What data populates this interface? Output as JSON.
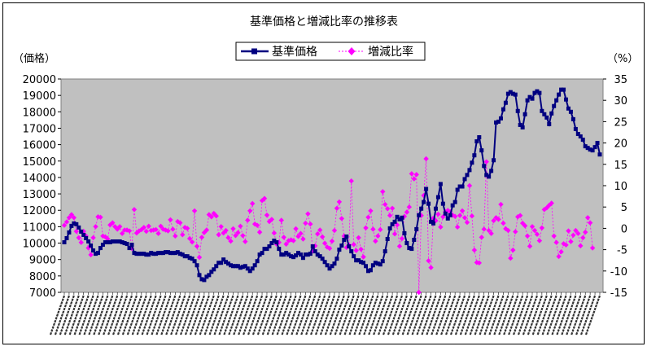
{
  "chart_data": {
    "type": "line",
    "title": "基準価格と増減比率の推移表",
    "y_left_label": "（価格）",
    "y_right_label": "（%）",
    "ylim_left": [
      7000,
      20000
    ],
    "ylim_right": [
      -15,
      35
    ],
    "yticks_left": [
      "7000",
      "8000",
      "9000",
      "10000",
      "11000",
      "12000",
      "13000",
      "14000",
      "15000",
      "16000",
      "17000",
      "18000",
      "19000",
      "20000"
    ],
    "yticks_right": [
      "-15",
      "-10",
      "-5",
      "0",
      "5",
      "10",
      "15",
      "20",
      "25",
      "30",
      "35"
    ],
    "legend_position": "top",
    "grid": false,
    "plot_background": "#c0c0c0",
    "series": [
      {
        "name": "基準価格",
        "axis": "left",
        "color": "#000080",
        "marker": "square",
        "values": [
          10050,
          10300,
          10650,
          11050,
          11200,
          11150,
          10950,
          10700,
          10500,
          10300,
          10100,
          9850,
          9550,
          9350,
          9400,
          9700,
          9900,
          10050,
          10050,
          10050,
          10100,
          10100,
          10100,
          10100,
          10050,
          10000,
          9950,
          9700,
          9900,
          9400,
          9350,
          9350,
          9350,
          9350,
          9300,
          9300,
          9400,
          9350,
          9350,
          9400,
          9400,
          9400,
          9450,
          9450,
          9400,
          9400,
          9400,
          9450,
          9350,
          9300,
          9200,
          9200,
          9100,
          9050,
          8900,
          8650,
          8050,
          7800,
          7750,
          7950,
          8050,
          8250,
          8400,
          8600,
          8800,
          8800,
          9000,
          8850,
          8750,
          8650,
          8600,
          8600,
          8600,
          8500,
          8550,
          8600,
          8450,
          8300,
          8450,
          8650,
          8900,
          9300,
          9400,
          9650,
          9650,
          9800,
          10000,
          10150,
          10050,
          9650,
          9300,
          9300,
          9400,
          9300,
          9200,
          9150,
          9250,
          9400,
          9300,
          9100,
          9300,
          9300,
          9350,
          9800,
          9500,
          9300,
          9200,
          9050,
          8850,
          8650,
          8450,
          8600,
          8750,
          9050,
          9600,
          9850,
          10200,
          10400,
          9800,
          9500,
          9200,
          8950,
          8950,
          8850,
          8800,
          8600,
          8300,
          8350,
          8650,
          8800,
          8750,
          8700,
          8900,
          9500,
          10250,
          10900,
          11150,
          11300,
          11600,
          11450,
          11550,
          10600,
          10000,
          9700,
          9650,
          10200,
          10850,
          11700,
          12100,
          12500,
          13300,
          12400,
          11300,
          11200,
          12100,
          12800,
          13600,
          12400,
          11800,
          11500,
          11700,
          12300,
          12500,
          13250,
          13450,
          13450,
          13900,
          14150,
          14450,
          14900,
          15350,
          16200,
          16450,
          15650,
          14700,
          14150,
          14050,
          14400,
          15050,
          17350,
          17400,
          17600,
          18150,
          18550,
          19100,
          19200,
          19100,
          19050,
          18050,
          17200,
          17050,
          17850,
          18700,
          18900,
          18800,
          19150,
          19250,
          19150,
          18050,
          17850,
          17650,
          17250,
          17900,
          18350,
          18700,
          19050,
          19350,
          19350,
          18750,
          18200,
          18000,
          17550,
          16950,
          16650,
          16500,
          16300,
          15900,
          15800,
          15700,
          15650,
          15850,
          16100,
          15400
        ]
      },
      {
        "name": "増減比率",
        "axis": "right",
        "color": "#ff00ff",
        "marker": "diamond",
        "values": [
          0.7,
          1.5,
          2.5,
          3.2,
          2.5,
          -0.7,
          -2.2,
          -3.3,
          -0.7,
          -1.8,
          -4.6,
          -6.2,
          -2.2,
          0.4,
          2.7,
          2.6,
          -1.8,
          -2.0,
          -2.5,
          0.8,
          1.3,
          0.4,
          -0.2,
          0.4,
          -1.2,
          -0.4,
          -0.4,
          -0.6,
          -4.7,
          4.4,
          -1.1,
          -0.6,
          -0.3,
          0.2,
          -0.7,
          0.5,
          -0.5,
          -0.4,
          -0.3,
          -1.2,
          0.5,
          -0.2,
          -0.4,
          -0.6,
          2.0,
          -0.2,
          -1.8,
          1.6,
          1.3,
          -1.5,
          0.2,
          0.0,
          -2.4,
          -3.2,
          4.1,
          -4.2,
          -6.8,
          -2.1,
          -1.0,
          -0.4,
          3.2,
          2.7,
          3.5,
          2.9,
          -1.5,
          0.4,
          -1.1,
          -0.5,
          -2.2,
          -3.0,
          -0.1,
          -1.7,
          -1.0,
          0.5,
          -1.7,
          -3.1,
          1.9,
          4.1,
          5.8,
          1.0,
          0.7,
          -0.9,
          6.5,
          7.0,
          3.1,
          1.6,
          2.1,
          -1.1,
          -3.7,
          -3.3,
          1.9,
          -2.1,
          -3.7,
          -2.9,
          -2.7,
          -2.9,
          -0.1,
          -1.9,
          -1.2,
          -2.5,
          1.2,
          3.4,
          1.0,
          -5.3,
          -4.1,
          -1.3,
          -0.4,
          -2.0,
          -3.5,
          -4.4,
          -4.7,
          -3.0,
          -0.5,
          4.7,
          6.2,
          2.3,
          -1.8,
          -4.5,
          -3.9,
          11.1,
          -3.8,
          -5.2,
          -2.2,
          -4.9,
          -6.7,
          0.1,
          2.6,
          4.1,
          -0.2,
          -3.0,
          -1.8,
          -0.3,
          8.6,
          5.6,
          4.6,
          3.0,
          4.7,
          -1.3,
          0.8,
          -4.2,
          -2.4,
          2.8,
          3.8,
          5.0,
          12.8,
          11.6,
          12.6,
          -15.0,
          3.0,
          7.7,
          16.3,
          -7.6,
          -9.2,
          2.4,
          1.8,
          3.3,
          0.3,
          2.7,
          3.9,
          4.2,
          3.9,
          3.1,
          2.8,
          0.3,
          3.0,
          4.1,
          2.5,
          1.4,
          10.0,
          2.9,
          -5.1,
          -8.0,
          -8.1,
          -2.1,
          -0.2,
          15.6,
          -0.5,
          -1.2,
          1.8,
          2.5,
          2.1,
          5.6,
          1.2,
          -0.1,
          -0.5,
          -7.0,
          -5.1,
          -0.8,
          2.7,
          3.0,
          1.2,
          0.6,
          -1.8,
          -4.2,
          0.4,
          -0.5,
          -1.4,
          -2.9,
          0.1,
          4.4,
          4.8,
          5.4,
          5.9,
          -1.8,
          -3.3,
          -6.6,
          -5.5,
          -3.6,
          -3.9,
          -0.6,
          -3.1,
          -1.6,
          -0.5,
          -1.2,
          -4.1,
          -2.2,
          -0.9,
          2.5,
          1.3,
          -4.6
        ]
      }
    ]
  }
}
